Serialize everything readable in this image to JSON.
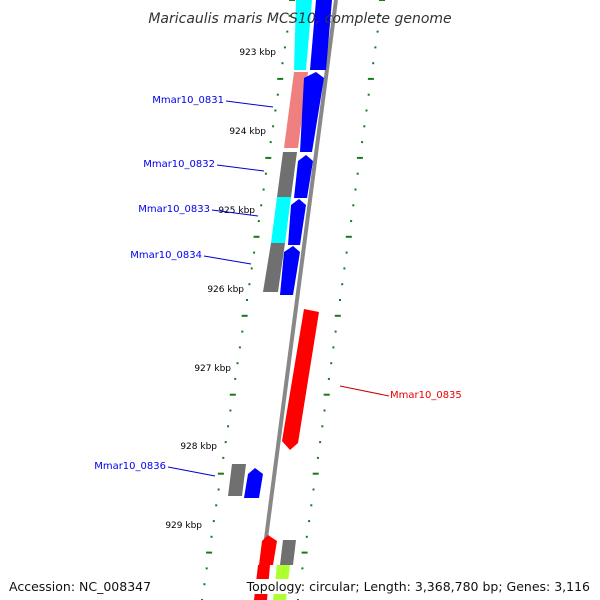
{
  "title": "Maricaulis maris MCS10, complete genome",
  "ticks": [
    "923 kbp",
    "924 kbp",
    "925 kbp",
    "926 kbp",
    "927 kbp",
    "928 kbp",
    "929 kbp"
  ],
  "genes": [
    {
      "name": "Mmar10_0831",
      "strand": "forward",
      "color": "#0000ee"
    },
    {
      "name": "Mmar10_0832",
      "strand": "forward",
      "color": "#0000ee"
    },
    {
      "name": "Mmar10_0833",
      "strand": "forward",
      "color": "#0000ee"
    },
    {
      "name": "Mmar10_0834",
      "strand": "forward",
      "color": "#0000ee"
    },
    {
      "name": "Mmar10_0835",
      "strand": "reverse",
      "color": "#ee0000"
    },
    {
      "name": "Mmar10_0836",
      "strand": "forward",
      "color": "#0000ee"
    }
  ],
  "cog_colors": {
    "cyan": "#00ffff",
    "salmon": "#f08080",
    "gray": "#707070",
    "red": "#ff0000",
    "lime": "#adff2f",
    "blue": "#0000ff"
  },
  "backbone_color": "#888888",
  "tick_color": "#1a7a1a",
  "footer": {
    "accession": "Accession: NC_008347",
    "summary": "Topology: circular; Length: 3,368,780 bp; Genes: 3,116"
  }
}
